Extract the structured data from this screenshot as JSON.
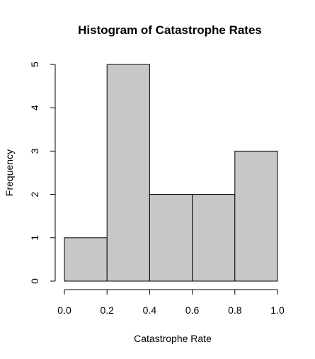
{
  "chart_data": {
    "type": "bar",
    "title": "Histogram of Catastrophe Rates",
    "xlabel": "Catastrophe Rate",
    "ylabel": "Frequency",
    "bins": [
      {
        "x0": 0.0,
        "x1": 0.2,
        "count": 1
      },
      {
        "x0": 0.2,
        "x1": 0.4,
        "count": 5
      },
      {
        "x0": 0.4,
        "x1": 0.6,
        "count": 2
      },
      {
        "x0": 0.6,
        "x1": 0.8,
        "count": 2
      },
      {
        "x0": 0.8,
        "x1": 1.0,
        "count": 3
      }
    ],
    "xlim": [
      0.0,
      1.0
    ],
    "ylim": [
      0,
      5
    ],
    "x_ticks": [
      "0.0",
      "0.2",
      "0.4",
      "0.6",
      "0.8",
      "1.0"
    ],
    "y_ticks": [
      "0",
      "1",
      "2",
      "3",
      "4",
      "5"
    ],
    "bar_fill_color": "#c8c8c8",
    "grid": false,
    "legend": "none"
  }
}
